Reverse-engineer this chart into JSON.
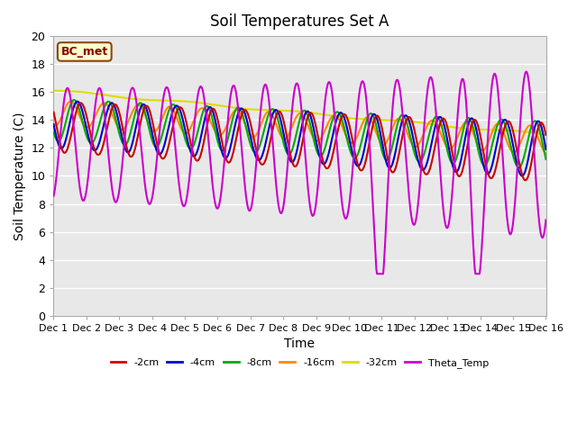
{
  "title": "Soil Temperatures Set A",
  "xlabel": "Time",
  "ylabel": "Soil Temperature (C)",
  "ylim": [
    0,
    20
  ],
  "xlim": [
    0,
    15
  ],
  "background_color": "#e8e8e8",
  "legend_label": "BC_met",
  "series_colors": {
    "-2cm": "#cc0000",
    "-4cm": "#0000cc",
    "-8cm": "#00aa00",
    "-16cm": "#ff8800",
    "-32cm": "#dddd00",
    "Theta_Temp": "#cc00cc"
  },
  "xtick_labels": [
    "Dec 1",
    "Dec 2",
    "Dec 3",
    "Dec 4",
    "Dec 5",
    "Dec 6",
    "Dec 7",
    "Dec 8",
    "Dec 9",
    "Dec 10",
    "Dec 11",
    "Dec 12",
    "Dec 13",
    "Dec 14",
    "Dec 15",
    "Dec 16"
  ],
  "xtick_positions": [
    0,
    1,
    2,
    3,
    4,
    5,
    6,
    7,
    8,
    9,
    10,
    11,
    12,
    13,
    14,
    15
  ],
  "ytick_positions": [
    0,
    2,
    4,
    6,
    8,
    10,
    12,
    14,
    16,
    18,
    20
  ],
  "n_points": 721,
  "days": 15
}
